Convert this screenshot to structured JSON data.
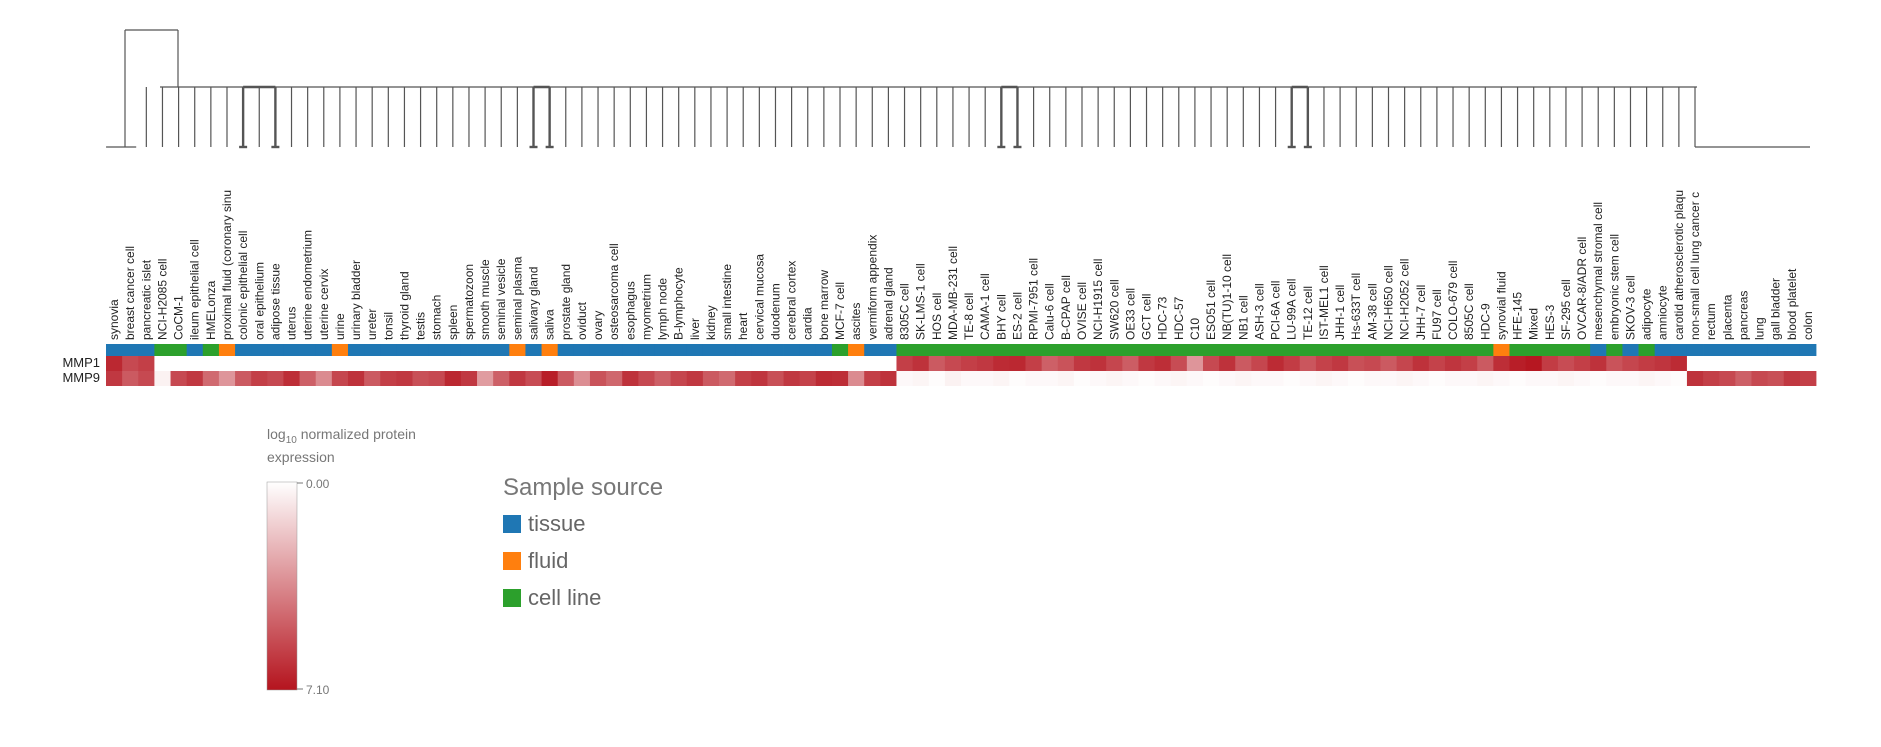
{
  "chart_data": {
    "type": "heatmap",
    "rows": [
      "MMP1",
      "MMP9"
    ],
    "columns": [
      "synovia",
      "breast cancer cell",
      "pancreatic islet",
      "NCI-H2085 cell",
      "CoCM-1",
      "ileum epithelial cell",
      "HMELonza",
      "proximal fluid (coronary sinu",
      "colonic epithelial cell",
      "oral epithelium",
      "adipose tissue",
      "uterus",
      "uterine endometrium",
      "uterine cervix",
      "urine",
      "urinary bladder",
      "ureter",
      "tonsil",
      "thyroid gland",
      "testis",
      "stomach",
      "spleen",
      "spermatozoon",
      "smooth muscle",
      "seminal vesicle",
      "seminal plasma",
      "salivary gland",
      "saliva",
      "prostate gland",
      "oviduct",
      "ovary",
      "osteosarcoma cell",
      "esophagus",
      "myometrium",
      "lymph node",
      "B-lymphocyte",
      "liver",
      "kidney",
      "small intestine",
      "heart",
      "cervical mucosa",
      "duodenum",
      "cerebral cortex",
      "cardia",
      "bone marrow",
      "MCF-7 cell",
      "ascites",
      "vermiform appendix",
      "adrenal gland",
      "8305C cell",
      "SK-LMS-1 cell",
      "HOS cell",
      "MDA-MB-231 cell",
      "TE-8 cell",
      "CAMA-1 cell",
      "BHY cell",
      "ES-2 cell",
      "RPMI-7951 cell",
      "Calu-6 cell",
      "B-CPAP cell",
      "OVISE cell",
      "NCI-H1915 cell",
      "SW620 cell",
      "OE33 cell",
      "GCT cell",
      "HDC-73",
      "HDC-57",
      "C10",
      "ESO51 cell",
      "NB(TU)1-10 cell",
      "NB1 cell",
      "ASH-3 cell",
      "PCI-6A cell",
      "LU-99A cell",
      "TE-12 cell",
      "IST-MEL1 cell",
      "JHH-1 cell",
      "Hs-633T cell",
      "AM-38 cell",
      "NCI-H650 cell",
      "NCI-H2052 cell",
      "JHH-7 cell",
      "FU97 cell",
      "COLO-679 cell",
      "8505C cell",
      "HDC-9",
      "synovial fluid",
      "HFE-145",
      "Mixed",
      "HES-3",
      "SF-295 cell",
      "OVCAR-8/ADR cell",
      "mesenchymal stromal cell",
      "embryonic stem cell",
      "SKOV-3 cell",
      "adipocyte",
      "amniocyte",
      "carotid atherosclerotic plaqu",
      "non-small cell lung cancer c",
      "rectum",
      "placenta",
      "pancreas",
      "lung",
      "gall bladder",
      "blood platelet",
      "colon"
    ],
    "sources": [
      "tissue",
      "tissue",
      "tissue",
      "cell line",
      "cell line",
      "tissue",
      "cell line",
      "fluid",
      "tissue",
      "tissue",
      "tissue",
      "tissue",
      "tissue",
      "tissue",
      "fluid",
      "tissue",
      "tissue",
      "tissue",
      "tissue",
      "tissue",
      "tissue",
      "tissue",
      "tissue",
      "tissue",
      "tissue",
      "fluid",
      "tissue",
      "fluid",
      "tissue",
      "tissue",
      "tissue",
      "tissue",
      "tissue",
      "tissue",
      "tissue",
      "tissue",
      "tissue",
      "tissue",
      "tissue",
      "tissue",
      "tissue",
      "tissue",
      "tissue",
      "tissue",
      "tissue",
      "cell line",
      "fluid",
      "tissue",
      "tissue",
      "cell line",
      "cell line",
      "cell line",
      "cell line",
      "cell line",
      "cell line",
      "cell line",
      "cell line",
      "cell line",
      "cell line",
      "cell line",
      "cell line",
      "cell line",
      "cell line",
      "cell line",
      "cell line",
      "cell line",
      "cell line",
      "cell line",
      "cell line",
      "cell line",
      "cell line",
      "cell line",
      "cell line",
      "cell line",
      "cell line",
      "cell line",
      "cell line",
      "cell line",
      "cell line",
      "cell line",
      "cell line",
      "cell line",
      "cell line",
      "cell line",
      "cell line",
      "cell line",
      "fluid",
      "cell line",
      "cell line",
      "cell line",
      "cell line",
      "cell line",
      "tissue",
      "cell line",
      "tissue",
      "cell line",
      "tissue",
      "tissue",
      "tissue",
      "tissue",
      "tissue",
      "tissue",
      "tissue",
      "tissue",
      "tissue",
      "tissue"
    ],
    "values": [
      [
        6.5,
        5.5,
        5.8,
        0,
        0,
        0,
        0,
        0,
        0,
        0,
        0,
        0,
        0,
        0,
        0,
        0,
        0,
        0,
        0,
        0,
        0,
        0,
        0,
        0,
        0,
        0,
        0,
        0,
        0,
        0,
        0,
        0,
        0,
        0,
        0,
        0,
        0,
        0,
        0,
        0,
        0,
        0,
        0,
        0,
        0,
        0,
        0,
        0,
        0,
        5.8,
        6.2,
        5.0,
        5.5,
        5.8,
        6.0,
        6.4,
        6.5,
        5.8,
        4.8,
        5.2,
        6.0,
        6.2,
        5.6,
        4.9,
        6.0,
        6.3,
        5.4,
        3.2,
        5.5,
        6.2,
        5.0,
        5.6,
        6.4,
        5.9,
        5.1,
        5.7,
        6.0,
        5.3,
        5.5,
        5.0,
        5.6,
        6.2,
        5.7,
        6.1,
        5.8,
        5.0,
        6.3,
        6.8,
        7.0,
        5.9,
        5.4,
        5.8,
        6.2,
        5.2,
        5.6,
        5.9,
        6.1,
        6.4,
        0,
        0,
        0,
        0,
        0,
        0,
        0,
        0
      ],
      [
        6.0,
        5.0,
        5.5,
        0.4,
        5.5,
        6.0,
        4.5,
        3.2,
        5.0,
        5.8,
        5.5,
        6.3,
        4.8,
        3.5,
        5.6,
        6.2,
        5.0,
        5.8,
        6.0,
        5.3,
        5.5,
        6.5,
        6.0,
        3.0,
        4.8,
        6.0,
        5.4,
        6.8,
        5.0,
        3.4,
        5.2,
        4.6,
        6.2,
        5.5,
        4.8,
        5.6,
        6.0,
        5.0,
        4.5,
        5.8,
        6.1,
        5.3,
        6.0,
        5.7,
        6.4,
        6.3,
        3.5,
        5.8,
        6.2,
        0.2,
        0.3,
        0.1,
        0.4,
        0.2,
        0.2,
        0.3,
        0.1,
        0.2,
        0.2,
        0.3,
        0.1,
        0.2,
        0.3,
        0.2,
        0.1,
        0.2,
        0.3,
        0.2,
        0.1,
        0.2,
        0.3,
        0.2,
        0.2,
        0.1,
        0.2,
        0.3,
        0.2,
        0.1,
        0.2,
        0.2,
        0.3,
        0.2,
        0.1,
        0.2,
        0.2,
        0.3,
        0.2,
        0.1,
        0.2,
        0.2,
        0.3,
        0.2,
        0.1,
        0.2,
        0.2,
        0.3,
        0.2,
        0.1,
        6.2,
        5.8,
        5.5,
        4.8,
        5.5,
        5.3,
        6.0,
        5.8
      ]
    ],
    "scale": {
      "min_label": "0.00",
      "max_label": "7.10",
      "min": 0,
      "max": 7.1,
      "low_color": "#ffffff",
      "high_color": "#b5141e"
    },
    "legend_title_main": "log",
    "legend_title_sub": "10",
    "legend_title_rest": " normalized protein",
    "legend_title_line2": "expression",
    "source_legend": {
      "title": "Sample source",
      "items": [
        {
          "label": "tissue",
          "color": "#1f77b4"
        },
        {
          "label": "fluid",
          "color": "#ff7f0e"
        },
        {
          "label": "cell line",
          "color": "#2ca02c"
        }
      ]
    }
  }
}
